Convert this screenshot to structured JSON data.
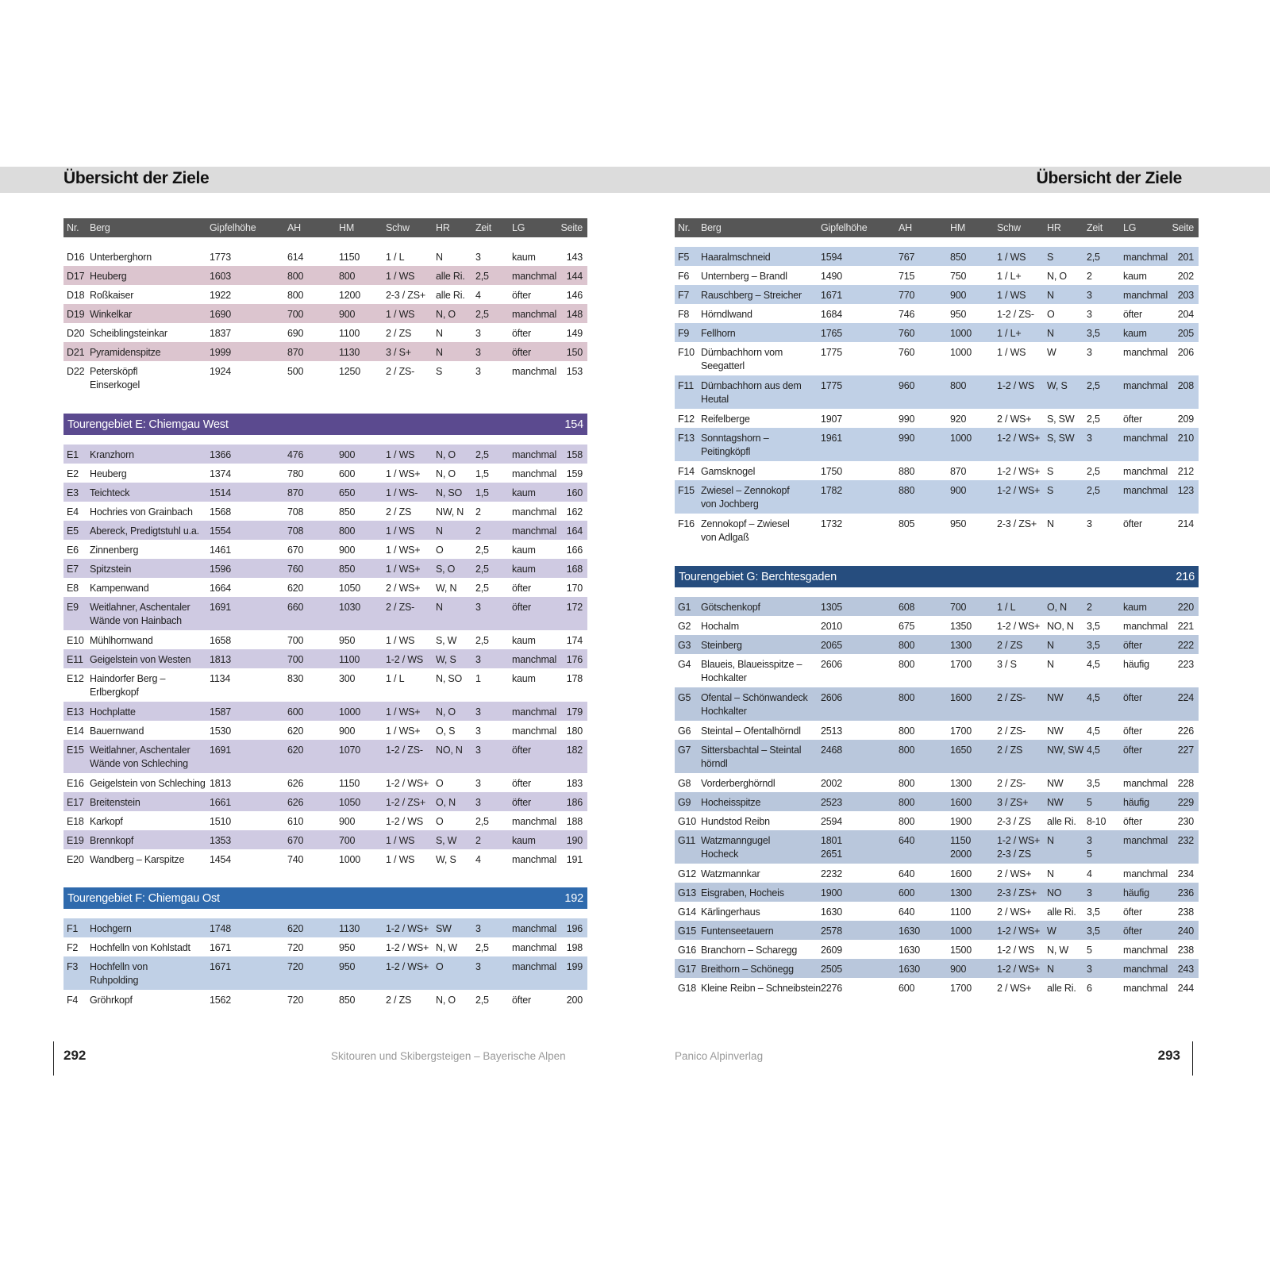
{
  "page_title": "Übersicht der Ziele",
  "columns": [
    "Nr.",
    "Berg",
    "Gipfelhöhe",
    "AH",
    "HM",
    "Schw",
    "HR",
    "Zeit",
    "LG",
    "Seite"
  ],
  "colors": {
    "header": "#565656",
    "D": "#dcc5cf",
    "E_head": "#5b4a8f",
    "E": "#cfcae2",
    "F_head": "#2f6aad",
    "F": "#c0d0e6",
    "G_head": "#264d7e",
    "G": "#b9c7dc"
  },
  "left": {
    "sections": [
      {
        "key": "D",
        "title": "",
        "page": "",
        "rows": [
          [
            "D16",
            "Unterberghorn",
            "1773",
            "614",
            "1150",
            "1 / L",
            "N",
            "3",
            "kaum",
            "143"
          ],
          [
            "D17",
            "Heuberg",
            "1603",
            "800",
            "800",
            "1 / WS",
            "alle Ri.",
            "2,5",
            "manchmal",
            "144"
          ],
          [
            "D18",
            "Roßkaiser",
            "1922",
            "800",
            "1200",
            "2-3 / ZS+",
            "alle Ri.",
            "4",
            "öfter",
            "146"
          ],
          [
            "D19",
            "Winkelkar",
            "1690",
            "700",
            "900",
            "1 / WS",
            "N, O",
            "2,5",
            "manchmal",
            "148"
          ],
          [
            "D20",
            "Scheiblingsteinkar",
            "1837",
            "690",
            "1100",
            "2 / ZS",
            "N",
            "3",
            "öfter",
            "149"
          ],
          [
            "D21",
            "Pyramidenspitze",
            "1999",
            "870",
            "1130",
            "3 / S+",
            "N",
            "3",
            "öfter",
            "150"
          ],
          [
            "D22",
            "Petersköpfl\nEinserkogel",
            "1924",
            "500",
            "1250",
            "2 / ZS-",
            "S",
            "3",
            "manchmal",
            "153"
          ]
        ]
      },
      {
        "key": "E",
        "title": "Tourengebiet E: Chiemgau West",
        "page": "154",
        "rows": [
          [
            "E1",
            "Kranzhorn",
            "1366",
            "476",
            "900",
            "1 / WS",
            "N, O",
            "2,5",
            "manchmal",
            "158"
          ],
          [
            "E2",
            "Heuberg",
            "1374",
            "780",
            "600",
            "1 / WS+",
            "N, O",
            "1,5",
            "manchmal",
            "159"
          ],
          [
            "E3",
            "Teichteck",
            "1514",
            "870",
            "650",
            "1 / WS-",
            "N, SO",
            "1,5",
            "kaum",
            "160"
          ],
          [
            "E4",
            "Hochries von Grainbach",
            "1568",
            "708",
            "850",
            "2 / ZS",
            "NW, N",
            "2",
            "manchmal",
            "162"
          ],
          [
            "E5",
            "Abereck, Predigtstuhl u.a.",
            "1554",
            "708",
            "800",
            "1 / WS",
            "N",
            "2",
            "manchmal",
            "164"
          ],
          [
            "E6",
            "Zinnenberg",
            "1461",
            "670",
            "900",
            "1 / WS+",
            "O",
            "2,5",
            "kaum",
            "166"
          ],
          [
            "E7",
            "Spitzstein",
            "1596",
            "760",
            "850",
            "1 / WS+",
            "S, O",
            "2,5",
            "kaum",
            "168"
          ],
          [
            "E8",
            "Kampenwand",
            "1664",
            "620",
            "1050",
            "2 / WS+",
            "W, N",
            "2,5",
            "öfter",
            "170"
          ],
          [
            "E9",
            "Weitlahner, Aschentaler\nWände von Hainbach",
            "1691",
            "660",
            "1030",
            "2 / ZS-",
            "N",
            "3",
            "öfter",
            "172"
          ],
          [
            "E10",
            "Mühlhornwand",
            "1658",
            "700",
            "950",
            "1 / WS",
            "S, W",
            "2,5",
            "kaum",
            "174"
          ],
          [
            "E11",
            "Geigelstein von Westen",
            "1813",
            "700",
            "1100",
            "1-2 / WS",
            "W, S",
            "3",
            "manchmal",
            "176"
          ],
          [
            "E12",
            "Haindorfer Berg –\nErlbergkopf",
            "1134",
            "830",
            "300",
            "1 / L",
            "N, SO",
            "1",
            "kaum",
            "178"
          ],
          [
            "E13",
            "Hochplatte",
            "1587",
            "600",
            "1000",
            "1 / WS+",
            "N, O",
            "3",
            "manchmal",
            "179"
          ],
          [
            "E14",
            "Bauernwand",
            "1530",
            "620",
            "900",
            "1 / WS+",
            "O, S",
            "3",
            "manchmal",
            "180"
          ],
          [
            "E15",
            "Weitlahner, Aschentaler\nWände von Schleching",
            "1691",
            "620",
            "1070",
            "1-2 / ZS-",
            "NO, N",
            "3",
            "öfter",
            "182"
          ],
          [
            "E16",
            "Geigelstein von Schleching",
            "1813",
            "626",
            "1150",
            "1-2 / WS+",
            "O",
            "3",
            "öfter",
            "183"
          ],
          [
            "E17",
            "Breitenstein",
            "1661",
            "626",
            "1050",
            "1-2 / ZS+",
            "O, N",
            "3",
            "öfter",
            "186"
          ],
          [
            "E18",
            "Karkopf",
            "1510",
            "610",
            "900",
            "1-2 / WS",
            "O",
            "2,5",
            "manchmal",
            "188"
          ],
          [
            "E19",
            "Brennkopf",
            "1353",
            "670",
            "700",
            "1 / WS",
            "S, W",
            "2",
            "kaum",
            "190"
          ],
          [
            "E20",
            "Wandberg – Karspitze",
            "1454",
            "740",
            "1000",
            "1 / WS",
            "W, S",
            "4",
            "manchmal",
            "191"
          ]
        ]
      },
      {
        "key": "F",
        "title": "Tourengebiet F: Chiemgau Ost",
        "page": "192",
        "rows": [
          [
            "F1",
            "Hochgern",
            "1748",
            "620",
            "1130",
            "1-2 / WS+",
            "SW",
            "3",
            "manchmal",
            "196"
          ],
          [
            "F2",
            "Hochfelln von Kohlstadt",
            "1671",
            "720",
            "950",
            "1-2 / WS+",
            "N, W",
            "2,5",
            "manchmal",
            "198"
          ],
          [
            "F3",
            "Hochfelln von\nRuhpolding",
            "1671",
            "720",
            "950",
            "1-2 / WS+",
            "O",
            "3",
            "manchmal",
            "199"
          ],
          [
            "F4",
            "Gröhrkopf",
            "1562",
            "720",
            "850",
            "2 / ZS",
            "N, O",
            "2,5",
            "öfter",
            "200"
          ]
        ]
      }
    ]
  },
  "right": {
    "sections": [
      {
        "key": "F",
        "title": "",
        "page": "",
        "rows": [
          [
            "F5",
            "Haaralmschneid",
            "1594",
            "767",
            "850",
            "1 / WS",
            "S",
            "2,5",
            "manchmal",
            "201"
          ],
          [
            "F6",
            "Unternberg – Brandl",
            "1490",
            "715",
            "750",
            "1 / L+",
            "N, O",
            "2",
            "kaum",
            "202"
          ],
          [
            "F7",
            "Rauschberg – Streicher",
            "1671",
            "770",
            "900",
            "1 / WS",
            "N",
            "3",
            "manchmal",
            "203"
          ],
          [
            "F8",
            "Hörndlwand",
            "1684",
            "746",
            "950",
            "1-2 / ZS-",
            "O",
            "3",
            "öfter",
            "204"
          ],
          [
            "F9",
            "Fellhorn",
            "1765",
            "760",
            "1000",
            "1 / L+",
            "N",
            "3,5",
            "kaum",
            "205"
          ],
          [
            "F10",
            "Dürnbachhorn vom\nSeegatterl",
            "1775",
            "760",
            "1000",
            "1 / WS",
            "W",
            "3",
            "manchmal",
            "206"
          ],
          [
            "F11",
            "Dürnbachhorn aus dem\nHeutal",
            "1775",
            "960",
            "800",
            "1-2 / WS",
            "W, S",
            "2,5",
            "manchmal",
            "208"
          ],
          [
            "F12",
            "Reifelberge",
            "1907",
            "990",
            "920",
            "2 / WS+",
            "S, SW",
            "2,5",
            "öfter",
            "209"
          ],
          [
            "F13",
            "Sonntagshorn –\nPeitingköpfl",
            "1961",
            "990",
            "1000",
            "1-2 / WS+",
            "S, SW",
            "3",
            "manchmal",
            "210"
          ],
          [
            "F14",
            "Gamsknogel",
            "1750",
            "880",
            "870",
            "1-2 / WS+",
            "S",
            "2,5",
            "manchmal",
            "212"
          ],
          [
            "F15",
            "Zwiesel – Zennokopf\nvon Jochberg",
            "1782",
            "880",
            "900",
            "1-2 / WS+",
            "S",
            "2,5",
            "manchmal",
            "123"
          ],
          [
            "F16",
            "Zennokopf – Zwiesel\nvon Adlgaß",
            "1732",
            "805",
            "950",
            "2-3 / ZS+",
            "N",
            "3",
            "öfter",
            "214"
          ]
        ]
      },
      {
        "key": "G",
        "title": "Tourengebiet G: Berchtesgaden",
        "page": "216",
        "rows": [
          [
            "G1",
            "Götschenkopf",
            "1305",
            "608",
            "700",
            "1 / L",
            "O, N",
            "2",
            "kaum",
            "220"
          ],
          [
            "G2",
            "Hochalm",
            "2010",
            "675",
            "1350",
            "1-2 / WS+",
            "NO, N",
            "3,5",
            "manchmal",
            "221"
          ],
          [
            "G3",
            "Steinberg",
            "2065",
            "800",
            "1300",
            "2 / ZS",
            "N",
            "3,5",
            "öfter",
            "222"
          ],
          [
            "G4",
            "Blaueis, Blaueisspitze –\nHochkalter",
            "2606",
            "800",
            "1700",
            "3 / S",
            "N",
            "4,5",
            "häufig",
            "223"
          ],
          [
            "G5",
            "Ofental – Schönwandeck\nHochkalter",
            "2606",
            "800",
            "1600",
            "2 / ZS-",
            "NW",
            "4,5",
            "öfter",
            "224"
          ],
          [
            "G6",
            "Steintal – Ofentalhörndl",
            "2513",
            "800",
            "1700",
            "2 / ZS-",
            "NW",
            "4,5",
            "öfter",
            "226"
          ],
          [
            "G7",
            "Sittersbachtal – Steintal\nhörndl",
            "2468",
            "800",
            "1650",
            "2 / ZS",
            "NW, SW",
            "4,5",
            "öfter",
            "227"
          ],
          [
            "G8",
            "Vorderberghörndl",
            "2002",
            "800",
            "1300",
            "2 / ZS-",
            "NW",
            "3,5",
            "manchmal",
            "228"
          ],
          [
            "G9",
            "Hocheisspitze",
            "2523",
            "800",
            "1600",
            "3 / ZS+",
            "NW",
            "5",
            "häufig",
            "229"
          ],
          [
            "G10",
            "Hundstod Reibn",
            "2594",
            "800",
            "1900",
            "2-3 / ZS",
            "alle Ri.",
            "8-10",
            "öfter",
            "230"
          ],
          [
            "G11",
            "Watzmanngugel\nHocheck",
            "1801\n2651",
            "640",
            "1150\n2000",
            "1-2 / WS+\n2-3 / ZS",
            "N",
            "3\n5",
            "manchmal",
            "232"
          ],
          [
            "G12",
            "Watzmannkar",
            "2232",
            "640",
            "1600",
            "2 / WS+",
            "N",
            "4",
            "manchmal",
            "234"
          ],
          [
            "G13",
            "Eisgraben, Hocheis",
            "1900",
            "600",
            "1300",
            "2-3 / ZS+",
            "NO",
            "3",
            "häufig",
            "236"
          ],
          [
            "G14",
            "Kärlingerhaus",
            "1630",
            "640",
            "1100",
            "2 / WS+",
            "alle Ri.",
            "3,5",
            "öfter",
            "238"
          ],
          [
            "G15",
            "Funtenseetauern",
            "2578",
            "1630",
            "1000",
            "1-2 / WS+",
            "W",
            "3,5",
            "öfter",
            "240"
          ],
          [
            "G16",
            "Branchorn – Scharegg",
            "2609",
            "1630",
            "1500",
            "1-2 / WS",
            "N, W",
            "5",
            "manchmal",
            "238"
          ],
          [
            "G17",
            "Breithorn – Schönegg",
            "2505",
            "1630",
            "900",
            "1-2 / WS+",
            "N",
            "3",
            "manchmal",
            "243"
          ],
          [
            "G18",
            "Kleine Reibn – Schneibstein",
            "2276",
            "600",
            "1700",
            "2 / WS+",
            "alle Ri.",
            "6",
            "manchmal",
            "244"
          ]
        ]
      }
    ]
  },
  "footer": {
    "left_page": "292",
    "left_text": "Skitouren und Skibergsteigen – Bayerische Alpen",
    "right_text": "Panico Alpinverlag",
    "right_page": "293"
  }
}
